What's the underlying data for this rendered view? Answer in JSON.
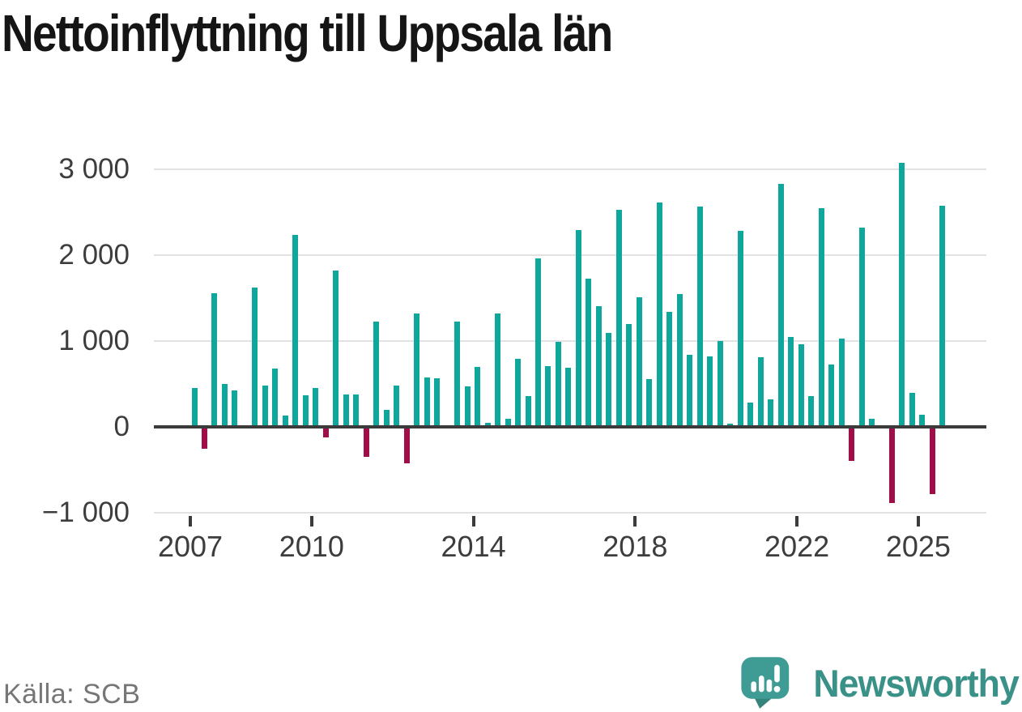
{
  "title": "Nettoinflyttning till Uppsala län",
  "source": "Källa: SCB",
  "brand": {
    "name": "Newsworthy",
    "icon": "newsworthy-speech-bubble-bar-chart-icon"
  },
  "colors": {
    "positive_bar": "#0fa69c",
    "negative_bar": "#9f0e49",
    "zero_axis": "#3b3b3b",
    "gridline": "#e2e2e2",
    "tick_label": "#3d3d3d",
    "title_text": "#151515",
    "source_text": "#767676",
    "brand_teal": "#399188",
    "logo_badge": "#3e9c94",
    "logo_badge_tail": "#35847c"
  },
  "chart_data": {
    "type": "bar",
    "title": "Nettoinflyttning till Uppsala län",
    "x_unit": "quarter",
    "grid": "horizontal",
    "legend": "none",
    "ylim": [
      -1000,
      3200
    ],
    "yticks": [
      {
        "value": 3000,
        "label": "3 000"
      },
      {
        "value": 2000,
        "label": "2 000"
      },
      {
        "value": 1000,
        "label": "1 000"
      },
      {
        "value": 0,
        "label": "0"
      },
      {
        "value": -1000,
        "label": "−1 000"
      }
    ],
    "xticks": [
      {
        "year": 2007,
        "label": "2007"
      },
      {
        "year": 2010,
        "label": "2010"
      },
      {
        "year": 2014,
        "label": "2014"
      },
      {
        "year": 2018,
        "label": "2018"
      },
      {
        "year": 2022,
        "label": "2022"
      },
      {
        "year": 2025,
        "label": "2025"
      }
    ],
    "quarters": [
      "2007Q1",
      "2007Q2",
      "2007Q3",
      "2007Q4",
      "2008Q1",
      "2008Q2",
      "2008Q3",
      "2008Q4",
      "2009Q1",
      "2009Q2",
      "2009Q3",
      "2009Q4",
      "2010Q1",
      "2010Q2",
      "2010Q3",
      "2010Q4",
      "2011Q1",
      "2011Q2",
      "2011Q3",
      "2011Q4",
      "2012Q1",
      "2012Q2",
      "2012Q3",
      "2012Q4",
      "2013Q1",
      "2013Q2",
      "2013Q3",
      "2013Q4",
      "2014Q1",
      "2014Q2",
      "2014Q3",
      "2014Q4",
      "2015Q1",
      "2015Q2",
      "2015Q3",
      "2015Q4",
      "2016Q1",
      "2016Q2",
      "2016Q3",
      "2016Q4",
      "2017Q1",
      "2017Q2",
      "2017Q3",
      "2017Q4",
      "2018Q1",
      "2018Q2",
      "2018Q3",
      "2018Q4",
      "2019Q1",
      "2019Q2",
      "2019Q3",
      "2019Q4",
      "2020Q1",
      "2020Q2",
      "2020Q3",
      "2020Q4",
      "2021Q1",
      "2021Q2",
      "2021Q3",
      "2021Q4",
      "2022Q1",
      "2022Q2",
      "2022Q3",
      "2022Q4",
      "2023Q1",
      "2023Q2",
      "2023Q3",
      "2023Q4",
      "2024Q1",
      "2024Q2",
      "2024Q3",
      "2024Q4",
      "2025Q1",
      "2025Q2",
      "2025Q3"
    ],
    "values": [
      450,
      -250,
      1560,
      500,
      420,
      0,
      1620,
      480,
      680,
      130,
      2240,
      370,
      450,
      -120,
      1820,
      380,
      380,
      -350,
      1230,
      200,
      480,
      -420,
      1320,
      580,
      570,
      0,
      1230,
      470,
      700,
      50,
      1320,
      90,
      790,
      360,
      1960,
      710,
      990,
      690,
      2290,
      1730,
      1410,
      1090,
      2530,
      1200,
      1510,
      560,
      2610,
      1340,
      1550,
      840,
      2570,
      820,
      1000,
      40,
      2280,
      280,
      810,
      320,
      2830,
      1050,
      960,
      360,
      2550,
      730,
      1030,
      -400,
      2320,
      90,
      0,
      -890,
      3080,
      400,
      140,
      -780,
      2580
    ]
  }
}
